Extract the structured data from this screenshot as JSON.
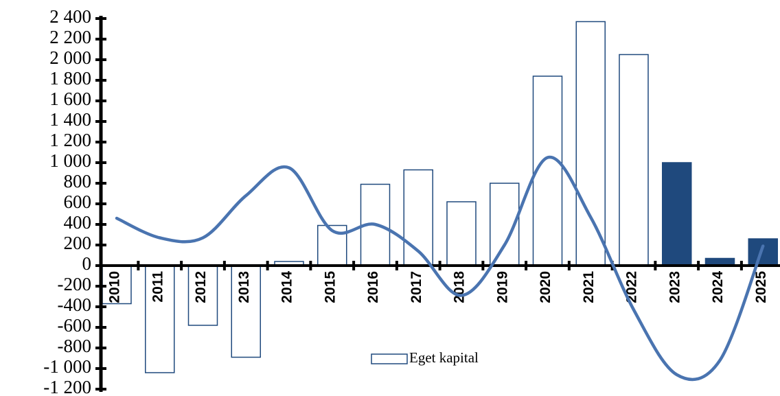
{
  "chart_data": {
    "type": "bar",
    "categories": [
      "2010",
      "2011",
      "2012",
      "2013",
      "2014",
      "2015",
      "2016",
      "2017",
      "2018",
      "2019",
      "2020",
      "2021",
      "2022",
      "2023",
      "2024",
      "2025"
    ],
    "series": [
      {
        "name": "Eget kapital",
        "type": "bar",
        "color": "#1f497d",
        "colors": [
          "#ffffff",
          "#ffffff",
          "#ffffff",
          "#ffffff",
          "#ffffff",
          "#ffffff",
          "#ffffff",
          "#ffffff",
          "#ffffff",
          "#ffffff",
          "#ffffff",
          "#ffffff",
          "#ffffff",
          "#1f497d",
          "#1f497d",
          "#1f497d"
        ],
        "values": [
          -370,
          -1040,
          -580,
          -890,
          40,
          390,
          790,
          930,
          620,
          800,
          1840,
          2370,
          2050,
          1000,
          70,
          260
        ]
      },
      {
        "type": "line",
        "color": "#4a74b0",
        "values": [
          460,
          270,
          270,
          680,
          950,
          340,
          400,
          140,
          -290,
          200,
          1050,
          470,
          -430,
          -1060,
          -920,
          190
        ]
      }
    ],
    "ylim": [
      -1200,
      2400
    ],
    "yticks": [
      {
        "value": -1200,
        "label": "-1 200"
      },
      {
        "value": -1000,
        "label": "-1 000"
      },
      -800,
      -600,
      -400,
      -200,
      0,
      200,
      400,
      600,
      800,
      {
        "value": 1000,
        "label": "1 000"
      },
      {
        "value": 1200,
        "label": "1 200"
      },
      {
        "value": 1400,
        "label": "1 400"
      },
      {
        "value": 1600,
        "label": "1 600"
      },
      {
        "value": 1800,
        "label": "1 800"
      },
      {
        "value": 2000,
        "label": "2 000"
      },
      {
        "value": 2200,
        "label": "2 200"
      },
      {
        "value": 2400,
        "label": "2 400"
      }
    ],
    "legend": "bottom"
  }
}
